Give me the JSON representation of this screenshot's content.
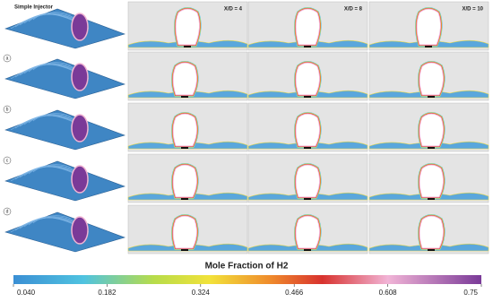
{
  "header": {
    "title": "Simple Injector"
  },
  "columns": [
    "X/D = 4",
    "X/D = 8",
    "X/D = 10"
  ],
  "rows": [
    "a",
    "b",
    "c",
    "d"
  ],
  "colorbar": {
    "title": "Mole Fraction of H2",
    "ticks": [
      {
        "value": 0.04,
        "label": "0.040"
      },
      {
        "value": 0.182,
        "label": "0.182"
      },
      {
        "value": 0.324,
        "label": "0.324"
      },
      {
        "value": 0.466,
        "label": "0.466"
      },
      {
        "value": 0.608,
        "label": "0.608"
      },
      0.75
    ]
  }
}
